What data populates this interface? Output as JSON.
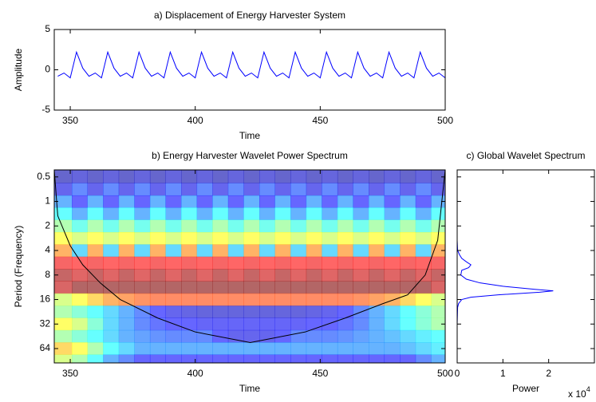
{
  "chart_data": [
    {
      "type": "line",
      "title": "a) Displacement of Energy Harvester System",
      "xlabel": "Time",
      "ylabel": "Amplitude",
      "x": [
        345,
        347.5,
        350,
        352.5,
        355,
        357.5,
        360,
        362.5,
        365,
        367.5,
        370,
        372.5,
        375,
        377.5,
        380,
        382.5,
        385,
        387.5,
        390,
        392.5,
        395,
        397.5,
        400,
        402.5,
        405,
        407.5,
        410,
        412.5,
        415,
        417.5,
        420,
        422.5,
        425,
        427.5,
        430,
        432.5,
        435,
        437.5,
        440,
        442.5,
        445,
        447.5,
        450,
        452.5,
        455,
        457.5,
        460,
        462.5,
        465,
        467.5,
        470,
        472.5,
        475,
        477.5,
        480,
        482.5,
        485,
        487.5,
        490,
        492.5,
        495,
        497.5,
        500
      ],
      "values": [
        -0.8,
        -0.4,
        -1.0,
        2.2,
        0.2,
        -0.8,
        -0.4,
        -1.0,
        2.2,
        0.2,
        -0.8,
        -0.4,
        -1.0,
        2.2,
        0.2,
        -0.8,
        -0.4,
        -1.0,
        2.2,
        0.2,
        -0.8,
        -0.4,
        -1.0,
        2.2,
        0.2,
        -0.8,
        -0.4,
        -1.0,
        2.2,
        0.2,
        -0.8,
        -0.4,
        -1.0,
        2.2,
        0.2,
        -0.8,
        -0.4,
        -1.0,
        2.2,
        0.2,
        -0.8,
        -0.4,
        -1.0,
        2.2,
        0.2,
        -0.8,
        -0.4,
        -1.0,
        2.2,
        0.2,
        -0.8,
        -0.4,
        -1.0,
        2.2,
        0.2,
        -0.8,
        -0.4,
        -1.0,
        2.2,
        0.2,
        -0.8,
        -0.4,
        -1.0
      ],
      "color": "#0000ff",
      "xlim": [
        343.6,
        500
      ],
      "xticks": [
        350,
        400,
        450,
        500
      ],
      "ylim": [
        -5,
        5
      ],
      "yticks": [
        -5,
        0,
        5
      ]
    },
    {
      "type": "contour",
      "title": "b) Energy Harvester Wavelet Power Spectrum",
      "xlabel": "Time",
      "ylabel": "Period (Frequency)",
      "x": [
        347.5,
        353.75,
        360,
        366.25,
        372.5,
        378.75,
        385,
        391.25,
        397.5,
        403.75,
        410,
        416.25,
        422.5,
        428.75,
        435,
        441.25,
        447.5,
        453.75,
        460,
        466.25,
        472.5,
        478.75,
        485,
        491.25,
        497.5
      ],
      "y": [
        0.5,
        0.71,
        1,
        1.41,
        2,
        2.83,
        4,
        5.66,
        8,
        11.3,
        16,
        22.6,
        32,
        45,
        64,
        90
      ],
      "z": [
        [
          0.05,
          0.1,
          0.05,
          0.1,
          0.05,
          0.1,
          0.05,
          0.1,
          0.05,
          0.1,
          0.05,
          0.1,
          0.05,
          0.1,
          0.05,
          0.1,
          0.05,
          0.1,
          0.05,
          0.1,
          0.05,
          0.1,
          0.05,
          0.1,
          0.05
        ],
        [
          0.15,
          0.25,
          0.15,
          0.25,
          0.15,
          0.25,
          0.15,
          0.25,
          0.15,
          0.25,
          0.15,
          0.25,
          0.15,
          0.25,
          0.15,
          0.25,
          0.15,
          0.25,
          0.15,
          0.25,
          0.15,
          0.25,
          0.15,
          0.25,
          0.15
        ],
        [
          0.3,
          0.2,
          0.3,
          0.2,
          0.3,
          0.2,
          0.3,
          0.2,
          0.3,
          0.2,
          0.3,
          0.2,
          0.3,
          0.2,
          0.3,
          0.2,
          0.3,
          0.2,
          0.3,
          0.2,
          0.3,
          0.2,
          0.3,
          0.2,
          0.3
        ],
        [
          0.4,
          0.3,
          0.4,
          0.3,
          0.4,
          0.3,
          0.4,
          0.3,
          0.4,
          0.3,
          0.4,
          0.3,
          0.4,
          0.3,
          0.4,
          0.3,
          0.4,
          0.3,
          0.4,
          0.3,
          0.4,
          0.3,
          0.4,
          0.3,
          0.4
        ],
        [
          0.5,
          0.42,
          0.5,
          0.42,
          0.5,
          0.42,
          0.5,
          0.42,
          0.5,
          0.42,
          0.5,
          0.42,
          0.5,
          0.42,
          0.5,
          0.42,
          0.5,
          0.42,
          0.5,
          0.42,
          0.5,
          0.42,
          0.5,
          0.42,
          0.5
        ],
        [
          0.6,
          0.55,
          0.6,
          0.55,
          0.6,
          0.55,
          0.6,
          0.55,
          0.6,
          0.55,
          0.6,
          0.55,
          0.6,
          0.55,
          0.6,
          0.55,
          0.6,
          0.55,
          0.6,
          0.55,
          0.6,
          0.55,
          0.6,
          0.55,
          0.6
        ],
        [
          0.7,
          0.35,
          0.7,
          0.35,
          0.7,
          0.35,
          0.7,
          0.35,
          0.7,
          0.35,
          0.7,
          0.35,
          0.7,
          0.35,
          0.7,
          0.35,
          0.7,
          0.35,
          0.7,
          0.35,
          0.7,
          0.35,
          0.7,
          0.35,
          0.7
        ],
        [
          0.82,
          0.8,
          0.82,
          0.8,
          0.82,
          0.8,
          0.82,
          0.8,
          0.82,
          0.8,
          0.82,
          0.8,
          0.82,
          0.8,
          0.82,
          0.8,
          0.82,
          0.8,
          0.82,
          0.8,
          0.82,
          0.8,
          0.82,
          0.8,
          0.82
        ],
        [
          0.95,
          0.88,
          0.95,
          0.88,
          0.95,
          0.88,
          0.95,
          0.88,
          0.95,
          0.88,
          0.95,
          0.88,
          0.95,
          0.88,
          0.95,
          0.88,
          0.95,
          0.88,
          0.95,
          0.88,
          0.95,
          0.88,
          0.95,
          0.88,
          0.95
        ],
        [
          0.9,
          1.0,
          1.0,
          1.0,
          1.0,
          1.0,
          1.0,
          1.0,
          1.0,
          1.0,
          1.0,
          1.0,
          1.0,
          1.0,
          1.0,
          1.0,
          1.0,
          1.0,
          1.0,
          1.0,
          1.0,
          1.0,
          1.0,
          1.0,
          0.9
        ],
        [
          0.55,
          0.6,
          0.65,
          0.7,
          0.72,
          0.74,
          0.75,
          0.75,
          0.75,
          0.75,
          0.75,
          0.75,
          0.75,
          0.75,
          0.75,
          0.75,
          0.75,
          0.75,
          0.75,
          0.74,
          0.72,
          0.7,
          0.65,
          0.6,
          0.55
        ],
        [
          0.5,
          0.45,
          0.4,
          0.35,
          0.3,
          0.25,
          0.2,
          0.15,
          0.12,
          0.1,
          0.1,
          0.1,
          0.1,
          0.1,
          0.1,
          0.1,
          0.12,
          0.15,
          0.2,
          0.25,
          0.3,
          0.35,
          0.4,
          0.45,
          0.5
        ],
        [
          0.6,
          0.55,
          0.45,
          0.35,
          0.3,
          0.25,
          0.22,
          0.2,
          0.2,
          0.18,
          0.18,
          0.18,
          0.18,
          0.18,
          0.18,
          0.18,
          0.2,
          0.2,
          0.22,
          0.25,
          0.3,
          0.35,
          0.4,
          0.45,
          0.5
        ],
        [
          0.5,
          0.45,
          0.4,
          0.35,
          0.3,
          0.28,
          0.26,
          0.25,
          0.25,
          0.25,
          0.2,
          0.15,
          0.15,
          0.15,
          0.2,
          0.25,
          0.25,
          0.25,
          0.26,
          0.28,
          0.3,
          0.32,
          0.35,
          0.38,
          0.4
        ],
        [
          0.65,
          0.6,
          0.5,
          0.4,
          0.35,
          0.3,
          0.3,
          0.3,
          0.3,
          0.3,
          0.3,
          0.3,
          0.3,
          0.3,
          0.3,
          0.3,
          0.3,
          0.3,
          0.3,
          0.3,
          0.3,
          0.3,
          0.32,
          0.35,
          0.38
        ],
        [
          0.55,
          0.5,
          0.4,
          0.3,
          0.25,
          0.2,
          0.2,
          0.2,
          0.2,
          0.2,
          0.2,
          0.2,
          0.2,
          0.2,
          0.2,
          0.2,
          0.2,
          0.2,
          0.2,
          0.2,
          0.2,
          0.2,
          0.2,
          0.25,
          0.3
        ]
      ],
      "zlim": [
        0,
        1
      ],
      "colormap": [
        "#00008f",
        "#0000ff",
        "#00ffff",
        "#ffff00",
        "#ff0000",
        "#800000"
      ],
      "coi": {
        "color": "#000000",
        "x": [
          343.6,
          345,
          350,
          355,
          362,
          370,
          385,
          400,
          422,
          444,
          460,
          475,
          485,
          492,
          497,
          500
        ],
        "y": [
          0.41,
          1.5,
          3.5,
          6,
          10,
          16,
          27,
          40,
          54,
          40,
          27,
          18,
          14,
          8,
          3,
          0.41
        ]
      },
      "xlim": [
        343.6,
        500
      ],
      "xticks": [
        350,
        400,
        450,
        500
      ],
      "ylim": [
        0.41,
        96
      ],
      "yticks": [
        0.5,
        1,
        2,
        4,
        8,
        16,
        32,
        64
      ],
      "y_log": true,
      "y_reversed": true
    },
    {
      "type": "line",
      "orientation": "horizontal",
      "title": "c) Global Wavelet Spectrum",
      "xlabel": "Power",
      "x_multiplier": {
        "base": "x 10",
        "exponent": "4"
      },
      "y": [
        0.5,
        1,
        2,
        3,
        4,
        4.5,
        5,
        5.5,
        6,
        6.5,
        7,
        8,
        9,
        10,
        11,
        12,
        12.5,
        13,
        14,
        15,
        16,
        18,
        20,
        32,
        64,
        90
      ],
      "values": [
        0,
        0,
        0,
        0,
        0.01,
        0.05,
        0.1,
        0.2,
        0.3,
        0.25,
        0.1,
        0.08,
        0.2,
        0.5,
        1.0,
        1.7,
        2.1,
        1.8,
        0.9,
        0.3,
        0.1,
        0.03,
        0.01,
        0,
        0,
        0
      ],
      "color": "#0000ff",
      "xlim": [
        0,
        3
      ],
      "xticks": [
        0,
        1,
        2
      ],
      "ylim": [
        0.41,
        96
      ],
      "yticks": [
        0.5,
        1,
        2,
        4,
        8,
        16,
        32,
        64
      ],
      "ytick_labels": false,
      "y_log": true,
      "y_reversed": true
    }
  ]
}
